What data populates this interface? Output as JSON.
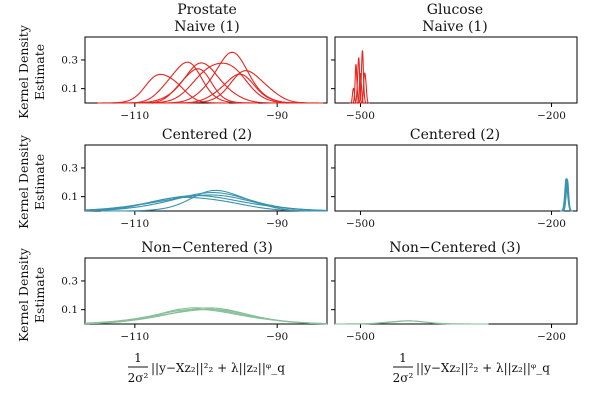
{
  "column_titles": {
    "left": [
      "Prostate",
      "Naive (1)"
    ],
    "right": [
      "Glucose",
      "Naive (1)"
    ]
  },
  "ylabel": [
    "Kernel Density",
    "Estimate"
  ],
  "xlabel": {
    "numerator": "1",
    "denominator": "2σ²",
    "expression": "||y−Xz₂||²₂ + λ||z₂||ᵠ_q"
  },
  "colors": {
    "naive": "#e8241f",
    "centered": "#3a93ad",
    "noncentered": "#86bf98"
  },
  "chart_data": [
    {
      "type": "line",
      "panel": "prostate-naive",
      "title": "",
      "xlim": [
        -117,
        -83
      ],
      "ylim": [
        0,
        0.46
      ],
      "xticks": [
        -110,
        -90
      ],
      "yticks": [
        0.1,
        0.3
      ],
      "series_color": "#e8241f",
      "components": [
        {
          "mu": -103.0,
          "sd": 2.3,
          "h": 0.28
        },
        {
          "mu": -96.5,
          "sd": 2.6,
          "h": 0.33
        },
        {
          "mu": -100.5,
          "sd": 2.8,
          "h": 0.26
        },
        {
          "mu": -94.0,
          "sd": 2.5,
          "h": 0.22
        },
        {
          "mu": -106.0,
          "sd": 2.2,
          "h": 0.21
        },
        {
          "mu": -98.0,
          "sd": 3.0,
          "h": 0.3
        },
        {
          "mu": -101.5,
          "sd": 2.1,
          "h": 0.24
        },
        {
          "mu": -95.5,
          "sd": 2.4,
          "h": 0.19
        }
      ]
    },
    {
      "type": "line",
      "panel": "glucose-naive",
      "title": "",
      "xlim": [
        -540,
        -160
      ],
      "ylim": [
        0,
        0.46
      ],
      "xticks": [
        -500,
        -200
      ],
      "yticks": [
        0.1,
        0.3
      ],
      "series_color": "#e8241f",
      "components": [
        {
          "mu": -503,
          "sd": 1.6,
          "h": 0.31
        },
        {
          "mu": -497,
          "sd": 1.7,
          "h": 0.34
        },
        {
          "mu": -507,
          "sd": 1.5,
          "h": 0.25
        },
        {
          "mu": -500,
          "sd": 1.6,
          "h": 0.2
        },
        {
          "mu": -493,
          "sd": 1.8,
          "h": 0.22
        },
        {
          "mu": -511,
          "sd": 1.4,
          "h": 0.11
        }
      ]
    },
    {
      "type": "line",
      "panel": "prostate-centered",
      "title": "Centered (2)",
      "xlim": [
        -117,
        -83
      ],
      "ylim": [
        0,
        0.46
      ],
      "xticks": [
        -110,
        -90
      ],
      "yticks": [
        0.1,
        0.3
      ],
      "series_color": "#3a93ad",
      "components": [
        {
          "mu": -100.5,
          "sd": 6.5,
          "h": 0.11
        },
        {
          "mu": -99.5,
          "sd": 6.0,
          "h": 0.12
        },
        {
          "mu": -101.0,
          "sd": 7.0,
          "h": 0.1
        },
        {
          "mu": -98.0,
          "sd": 4.0,
          "h": 0.14
        },
        {
          "mu": -102.0,
          "sd": 5.5,
          "h": 0.1
        }
      ]
    },
    {
      "type": "line",
      "panel": "glucose-centered",
      "title": "Centered (2)",
      "xlim": [
        -540,
        -160
      ],
      "ylim": [
        0,
        0.46
      ],
      "xticks": [
        -500,
        -200
      ],
      "yticks": [
        0.1,
        0.3
      ],
      "series_color": "#3a93ad",
      "components": [
        {
          "mu": -176,
          "sd": 2.2,
          "h": 0.22
        },
        {
          "mu": -175,
          "sd": 2.0,
          "h": 0.2
        },
        {
          "mu": -177,
          "sd": 2.3,
          "h": 0.21
        }
      ]
    },
    {
      "type": "line",
      "panel": "prostate-noncentered",
      "title": "Non−Centered (3)",
      "xlim": [
        -117,
        -83
      ],
      "ylim": [
        0,
        0.46
      ],
      "xticks": [
        -110,
        -90
      ],
      "yticks": [
        0.1,
        0.3
      ],
      "series_color": "#86bf98",
      "components": [
        {
          "mu": -100.5,
          "sd": 6.5,
          "h": 0.1
        },
        {
          "mu": -100.0,
          "sd": 6.2,
          "h": 0.105
        },
        {
          "mu": -101.0,
          "sd": 6.8,
          "h": 0.095
        },
        {
          "mu": -100.5,
          "sd": 6.0,
          "h": 0.11
        }
      ]
    },
    {
      "type": "line",
      "panel": "glucose-noncentered",
      "title": "Non−Centered (3)",
      "xlim": [
        -540,
        -160
      ],
      "ylim": [
        0,
        0.46
      ],
      "xticks": [
        -500,
        -200
      ],
      "yticks": [
        0.1,
        0.3
      ],
      "series_color": "#86bf98",
      "components": [
        {
          "mu": -430,
          "sd": 28,
          "h": 0.022
        },
        {
          "mu": -425,
          "sd": 30,
          "h": 0.02
        }
      ]
    }
  ]
}
